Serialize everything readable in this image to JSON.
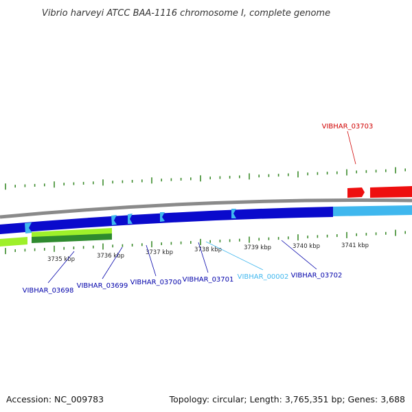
{
  "title": "Vibrio harveyi ATCC BAA-1116 chromosome I, complete genome",
  "footer": {
    "accession": "Accession: NC_009783",
    "topology": "Topology: circular; Length: 3,765,351 bp; Genes: 3,688"
  },
  "colors": {
    "tick": "#3a8a2a",
    "backbone": "#8a8a8a",
    "gene_blue_dark": "#0a0acc",
    "gene_blue_light": "#3fb7ee",
    "gene_red": "#ee0f0f",
    "gene_green_light": "#9ef02a",
    "gene_green_dark": "#2e8a2e"
  },
  "scale": {
    "unit": "kbp",
    "labels": [
      "3735 kbp",
      "3736 kbp",
      "3737 kbp",
      "3738 kbp",
      "3739 kbp",
      "3740 kbp",
      "3741 kbp"
    ]
  },
  "genes": [
    {
      "name": "VIBHAR_03698",
      "color": "#0000aa"
    },
    {
      "name": "VIBHAR_03699",
      "color": "#0000aa"
    },
    {
      "name": "VIBHAR_03700",
      "color": "#0000aa"
    },
    {
      "name": "VIBHAR_03701",
      "color": "#0000aa"
    },
    {
      "name": "VIBHAR_00002",
      "color": "#3fb7ee"
    },
    {
      "name": "VIBHAR_03702",
      "color": "#0000aa"
    },
    {
      "name": "VIBHAR_03703",
      "color": "#d00000"
    }
  ]
}
